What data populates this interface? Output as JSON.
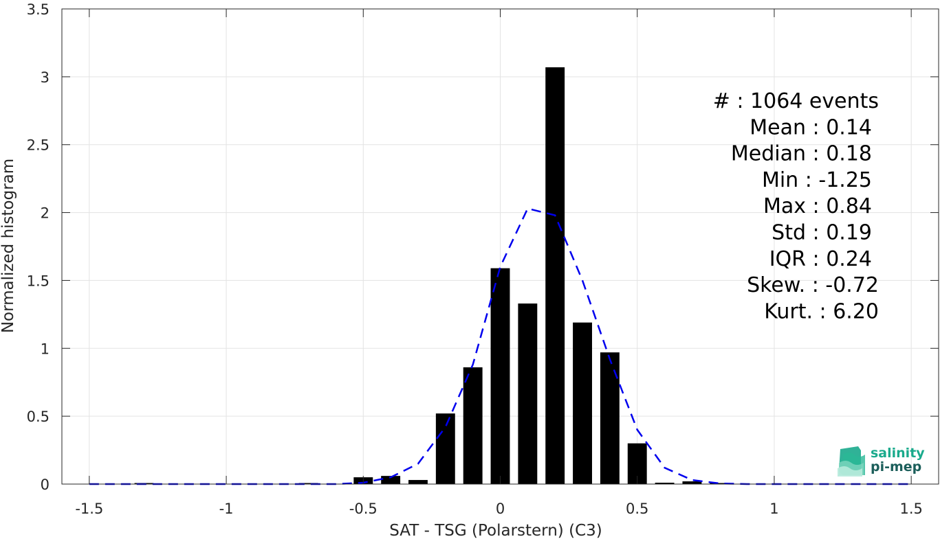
{
  "chart_data": {
    "type": "bar",
    "xlabel": "SAT - TSG (Polarstern) (C3)",
    "ylabel": "Normalized histogram",
    "xlim": [
      -1.6,
      1.6
    ],
    "ylim": [
      0,
      3.5
    ],
    "xticks": [
      -1.5,
      -1,
      -0.5,
      0,
      0.5,
      1,
      1.5
    ],
    "xtick_labels": [
      "-1.5",
      "-1",
      "-0.5",
      "0",
      "0.5",
      "1",
      "1.5"
    ],
    "yticks": [
      0,
      0.5,
      1,
      1.5,
      2,
      2.5,
      3,
      3.5
    ],
    "ytick_labels": [
      "0",
      "0.5",
      "1",
      "1.5",
      "2",
      "2.5",
      "3",
      "3.5"
    ],
    "grid": true,
    "bar_width": 0.07,
    "bars": {
      "x": [
        -1.3,
        -0.7,
        -0.5,
        -0.4,
        -0.3,
        -0.2,
        -0.1,
        0.0,
        0.1,
        0.2,
        0.3,
        0.4,
        0.5,
        0.6,
        0.7,
        0.8
      ],
      "values": [
        0.005,
        0.005,
        0.05,
        0.06,
        0.03,
        0.52,
        0.86,
        1.59,
        1.33,
        3.07,
        1.19,
        0.97,
        0.3,
        0.01,
        0.02,
        0.005
      ],
      "color": "#000000"
    },
    "fit_curve": {
      "style": "dashed",
      "color": "#0000ee",
      "x": [
        -1.5,
        -1.4,
        -1.3,
        -1.2,
        -1.1,
        -1.0,
        -0.9,
        -0.8,
        -0.7,
        -0.6,
        -0.5,
        -0.4,
        -0.3,
        -0.2,
        -0.1,
        0.0,
        0.1,
        0.2,
        0.3,
        0.4,
        0.5,
        0.6,
        0.7,
        0.8,
        0.9,
        1.0,
        1.1,
        1.2,
        1.3,
        1.4,
        1.5
      ],
      "y": [
        0,
        0,
        0,
        0,
        0,
        0,
        0,
        0,
        0,
        0,
        0.01,
        0.05,
        0.15,
        0.42,
        0.88,
        1.6,
        2.03,
        1.98,
        1.5,
        0.92,
        0.4,
        0.12,
        0.03,
        0.005,
        0,
        0,
        0,
        0,
        0,
        0,
        0
      ]
    },
    "stats": [
      "#  : 1064 events",
      "Mean : 0.14",
      "Median : 0.18",
      "Min : -1.25",
      "Max : 0.84",
      "Std : 0.19",
      "IQR : 0.24",
      "Skew. : -0.72",
      "Kurt. : 6.20"
    ]
  },
  "logo": {
    "line1": "salinity",
    "line2": "pi-mep",
    "color1": "#1aaa8c",
    "color2": "#1b5e5a"
  }
}
